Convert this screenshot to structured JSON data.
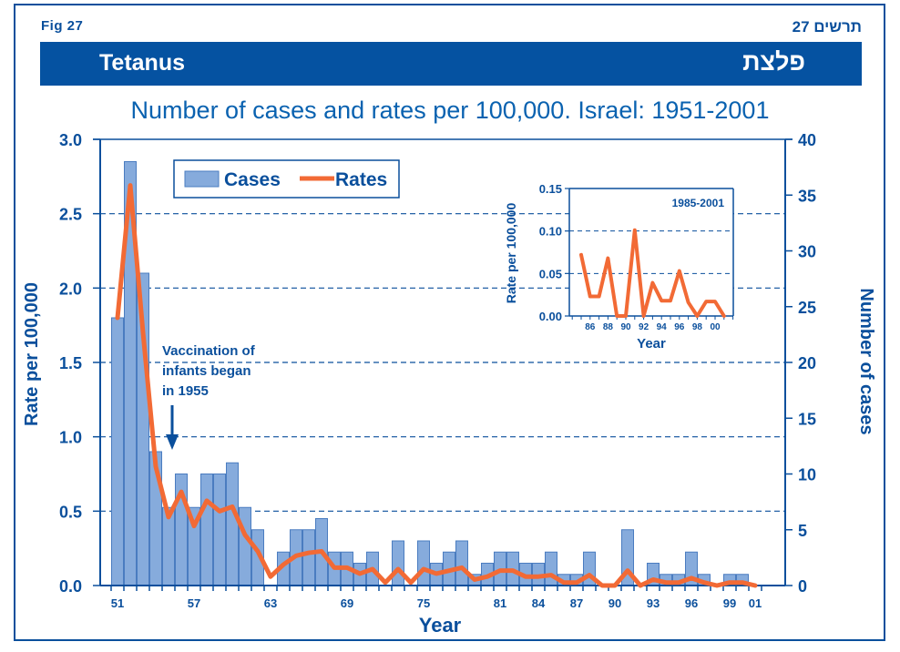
{
  "header": {
    "fig_label_en": "Fig  27",
    "fig_label_he": "תרשים 27",
    "title_en": "Tetanus",
    "title_he": "פלצת"
  },
  "colors": {
    "brand_blue": "#0552a1",
    "text_blue": "#0a4f9c",
    "bar_fill": "#86abdc",
    "bar_stroke": "#4a7cc0",
    "line": "#f26a35"
  },
  "chart_data": [
    {
      "type": "bar+line",
      "title": "Number of cases and rates per 100,000. Israel: 1951-2001",
      "xlabel": "Year",
      "ylabel_left": "Rate per 100,000",
      "ylabel_right": "Number of cases",
      "ylim_left": [
        0,
        3.0
      ],
      "ylim_right": [
        0,
        40
      ],
      "yticks_left": [
        "0.0",
        "0.5",
        "1.0",
        "1.5",
        "2.0",
        "2.5",
        "3.0"
      ],
      "yticks_right": [
        "0",
        "5",
        "10",
        "15",
        "20",
        "25",
        "30",
        "35",
        "40"
      ],
      "xtick_labels": [
        {
          "year": 1951,
          "label": "51"
        },
        {
          "year": 1957,
          "label": "57"
        },
        {
          "year": 1963,
          "label": "63"
        },
        {
          "year": 1969,
          "label": "69"
        },
        {
          "year": 1975,
          "label": "75"
        },
        {
          "year": 1981,
          "label": "81"
        },
        {
          "year": 1984,
          "label": "84"
        },
        {
          "year": 1987,
          "label": "87"
        },
        {
          "year": 1990,
          "label": "90"
        },
        {
          "year": 1993,
          "label": "93"
        },
        {
          "year": 1996,
          "label": "96"
        },
        {
          "year": 1999,
          "label": "99"
        },
        {
          "year": 2001,
          "label": "01"
        }
      ],
      "grid": "horizontal dashed",
      "legend": {
        "position": "top-left",
        "entries": [
          "Cases",
          "Rates"
        ]
      },
      "annotation": {
        "lines": [
          "Vaccination of",
          "infants began",
          "in 1955"
        ],
        "points_to_year": 1955
      },
      "x": [
        1951,
        1952,
        1953,
        1954,
        1955,
        1956,
        1957,
        1958,
        1959,
        1960,
        1961,
        1962,
        1963,
        1964,
        1965,
        1966,
        1967,
        1968,
        1969,
        1970,
        1971,
        1972,
        1973,
        1974,
        1975,
        1976,
        1977,
        1978,
        1979,
        1980,
        1981,
        1982,
        1983,
        1984,
        1985,
        1986,
        1987,
        1988,
        1989,
        1990,
        1991,
        1992,
        1993,
        1994,
        1995,
        1996,
        1997,
        1998,
        1999,
        2000,
        2001
      ],
      "series": [
        {
          "name": "Cases",
          "axis": "right",
          "kind": "bar",
          "values": [
            24,
            38,
            28,
            12,
            7,
            10,
            7,
            10,
            10,
            11,
            7,
            5,
            0,
            3,
            5,
            5,
            6,
            3,
            3,
            2,
            3,
            0,
            4,
            0,
            4,
            2,
            3,
            4,
            1,
            2,
            3,
            3,
            2,
            2,
            3,
            1,
            1,
            3,
            0,
            0,
            5,
            0,
            2,
            1,
            1,
            3,
            1,
            0,
            1,
            1,
            0
          ]
        },
        {
          "name": "Rates",
          "axis": "left",
          "kind": "line",
          "values": [
            1.8,
            2.69,
            1.7,
            0.8,
            0.46,
            0.63,
            0.4,
            0.57,
            0.5,
            0.53,
            0.34,
            0.23,
            0.06,
            0.14,
            0.2,
            0.22,
            0.23,
            0.12,
            0.12,
            0.08,
            0.11,
            0.02,
            0.11,
            0.02,
            0.11,
            0.08,
            0.1,
            0.12,
            0.04,
            0.06,
            0.1,
            0.1,
            0.06,
            0.06,
            0.07,
            0.02,
            0.02,
            0.07,
            0.0,
            0.0,
            0.1,
            0.0,
            0.04,
            0.02,
            0.02,
            0.05,
            0.02,
            0.0,
            0.02,
            0.02,
            0.0
          ]
        }
      ]
    },
    {
      "type": "line",
      "title": "1985-2001",
      "xlabel": "Year",
      "ylabel": "Rate per 100,000",
      "ylim": [
        0,
        0.15
      ],
      "yticks": [
        "0.00",
        "0.05",
        "0.10",
        "0.15"
      ],
      "xtick_labels": [
        "86",
        "88",
        "90",
        "92",
        "94",
        "96",
        "98",
        "00"
      ],
      "x": [
        1985,
        1986,
        1987,
        1988,
        1989,
        1990,
        1991,
        1992,
        1993,
        1994,
        1995,
        1996,
        1997,
        1998,
        1999,
        2000,
        2001
      ],
      "series": [
        {
          "name": "Rates",
          "values": [
            0.072,
            0.023,
            0.023,
            0.068,
            0.0,
            0.0,
            0.101,
            0.0,
            0.039,
            0.018,
            0.018,
            0.053,
            0.016,
            0.0,
            0.017,
            0.017,
            0.0
          ]
        }
      ]
    }
  ]
}
